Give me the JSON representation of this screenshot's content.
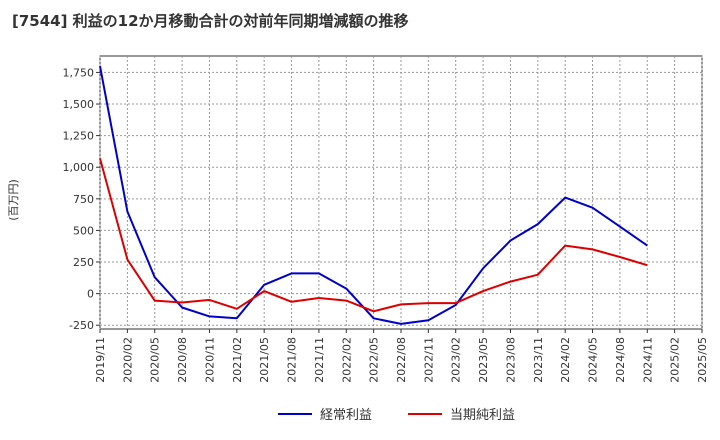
{
  "chart_data": {
    "type": "line",
    "title": "[7544]  利益の12か月移動合計の対前年同期増減額の推移",
    "ylabel": "(百万円)",
    "xlabel": "",
    "ylim": [
      -280,
      1880
    ],
    "y_ticks": [
      -250,
      0,
      250,
      500,
      750,
      1000,
      1250,
      1500,
      1750
    ],
    "y_tick_labels": [
      "-250",
      "0",
      "250",
      "500",
      "750",
      "1,000",
      "1,250",
      "1,500",
      "1,750"
    ],
    "x_tick_labels": [
      "2019/11",
      "2020/02",
      "2020/05",
      "2020/08",
      "2020/11",
      "2021/02",
      "2021/05",
      "2021/08",
      "2021/11",
      "2022/02",
      "2022/05",
      "2022/08",
      "2022/11",
      "2023/02",
      "2023/05",
      "2023/08",
      "2023/11",
      "2024/02",
      "2024/05",
      "2024/08",
      "2024/11",
      "2025/02",
      "2025/05"
    ],
    "grid": true,
    "legend_position": "bottom",
    "series": [
      {
        "name": "経常利益",
        "color": "#0000cc",
        "values": [
          1800,
          650,
          130,
          -110,
          -180,
          -195,
          70,
          160,
          160,
          40,
          -195,
          -240,
          -210,
          -90,
          200,
          420,
          550,
          760,
          680,
          530,
          380
        ]
      },
      {
        "name": "当期純利益",
        "color": "#dd0000",
        "values": [
          1070,
          270,
          -55,
          -70,
          -50,
          -120,
          20,
          -65,
          -35,
          -55,
          -140,
          -85,
          -75,
          -75,
          20,
          95,
          150,
          380,
          350,
          290,
          225
        ]
      }
    ]
  }
}
